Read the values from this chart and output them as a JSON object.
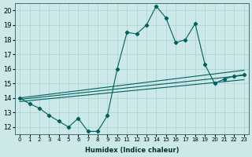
{
  "xlabel": "Humidex (Indice chaleur)",
  "bg_color": "#cce8e8",
  "grid_color": "#aad0d0",
  "line_color": "#006060",
  "xlim": [
    -0.5,
    23.5
  ],
  "ylim": [
    11.5,
    20.5
  ],
  "yticks": [
    12,
    13,
    14,
    15,
    16,
    17,
    18,
    19,
    20
  ],
  "xtick_pos": [
    0,
    1,
    2,
    3,
    4,
    5,
    6,
    7,
    8,
    9,
    10,
    11,
    12,
    13,
    14,
    15,
    16,
    17,
    18,
    19,
    20,
    21,
    22,
    23
  ],
  "xtick_labels": [
    "0",
    "1",
    "2",
    "3",
    "4",
    "5",
    "6",
    "7",
    "8",
    "9",
    "10",
    "11",
    "12",
    "13",
    "14",
    "15",
    "16",
    "17",
    "18",
    "19",
    "20",
    "21",
    "22",
    "23"
  ],
  "main_series": [
    14.0,
    13.6,
    13.3,
    12.8,
    12.4,
    12.0,
    12.6,
    11.7,
    11.7,
    12.8,
    16.0,
    18.5,
    18.4,
    19.0,
    20.3,
    19.5,
    17.8,
    18.0,
    19.1,
    16.3,
    15.0,
    15.3,
    15.5,
    15.6
  ],
  "env_lines": [
    [
      14.0,
      15.9
    ],
    [
      13.9,
      15.55
    ],
    [
      13.75,
      15.25
    ]
  ]
}
